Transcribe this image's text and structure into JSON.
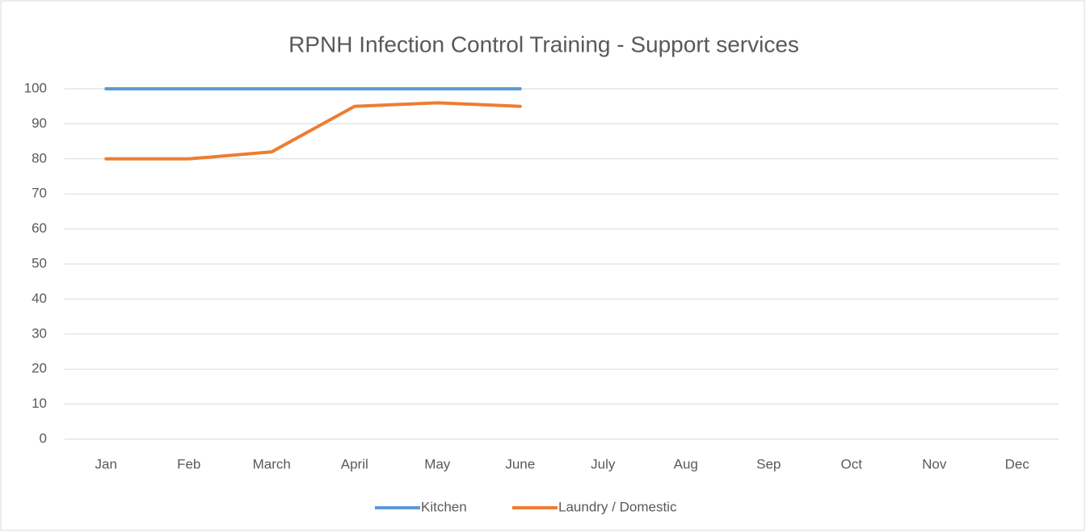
{
  "chart_data": {
    "type": "line",
    "title": "RPNH Infection Control Training - Support services",
    "categories": [
      "Jan",
      "Feb",
      "March",
      "April",
      "May",
      "June",
      "July",
      "Aug",
      "Sep",
      "Oct",
      "Nov",
      "Dec"
    ],
    "series": [
      {
        "name": "Kitchen",
        "color": "#5b9bd5",
        "values": [
          100,
          100,
          100,
          100,
          100,
          100,
          null,
          null,
          null,
          null,
          null,
          null
        ]
      },
      {
        "name": "Laundry / Domestic",
        "color": "#ed7d31",
        "values": [
          80,
          80,
          82,
          95,
          96,
          95,
          null,
          null,
          null,
          null,
          null,
          null
        ]
      }
    ],
    "ylim": [
      0,
      100
    ],
    "yticks": [
      0,
      10,
      20,
      30,
      40,
      50,
      60,
      70,
      80,
      90,
      100
    ],
    "grid": true,
    "legend": "bottom"
  }
}
